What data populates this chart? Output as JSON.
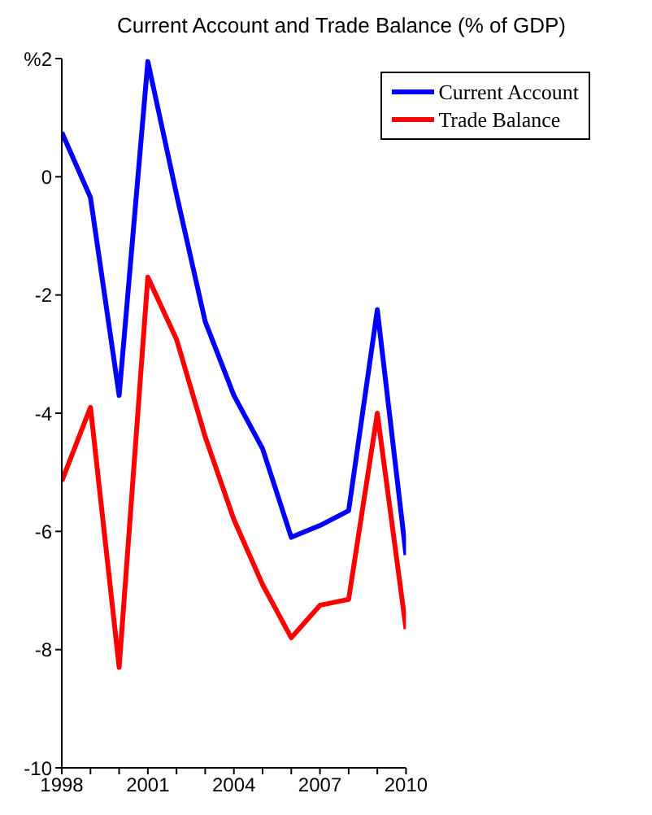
{
  "chart_data": {
    "type": "line",
    "title": "Current Account and Trade Balance (% of GDP)",
    "x": [
      1998,
      1999,
      2000,
      2001,
      2002,
      2003,
      2004,
      2005,
      2006,
      2007,
      2008,
      2009,
      2010
    ],
    "series": [
      {
        "name": "Current Account",
        "color": "#0000ff",
        "values": [
          0.75,
          -0.35,
          -3.7,
          1.95,
          -0.3,
          -2.45,
          -3.7,
          -4.6,
          -6.1,
          -5.9,
          -5.65,
          -2.25,
          -6.4
        ]
      },
      {
        "name": "Trade Balance",
        "color": "#ff0000",
        "values": [
          -5.15,
          -3.9,
          -8.3,
          -1.7,
          -2.75,
          -4.4,
          -5.8,
          -6.9,
          -7.8,
          -7.25,
          -7.15,
          -4.0,
          -7.65
        ]
      }
    ],
    "xlim": [
      1998,
      2010
    ],
    "xticks": [
      1998,
      {
        "value": 1999,
        "label": null
      },
      {
        "value": 2000,
        "label": null
      },
      2001,
      {
        "value": 2002,
        "label": null
      },
      {
        "value": 2003,
        "label": null
      },
      2004,
      {
        "value": 2005,
        "label": null
      },
      {
        "value": 2006,
        "label": null
      },
      2007,
      {
        "value": 2008,
        "label": null
      },
      {
        "value": 2009,
        "label": null
      },
      2010
    ],
    "ylim": [
      -10,
      2
    ],
    "yticks": [
      -10,
      -8,
      -6,
      -4,
      -2,
      0,
      {
        "value": 2,
        "label": "%2"
      }
    ],
    "grid": false,
    "legend": "top right",
    "marker": "none",
    "line_style": "solid"
  }
}
